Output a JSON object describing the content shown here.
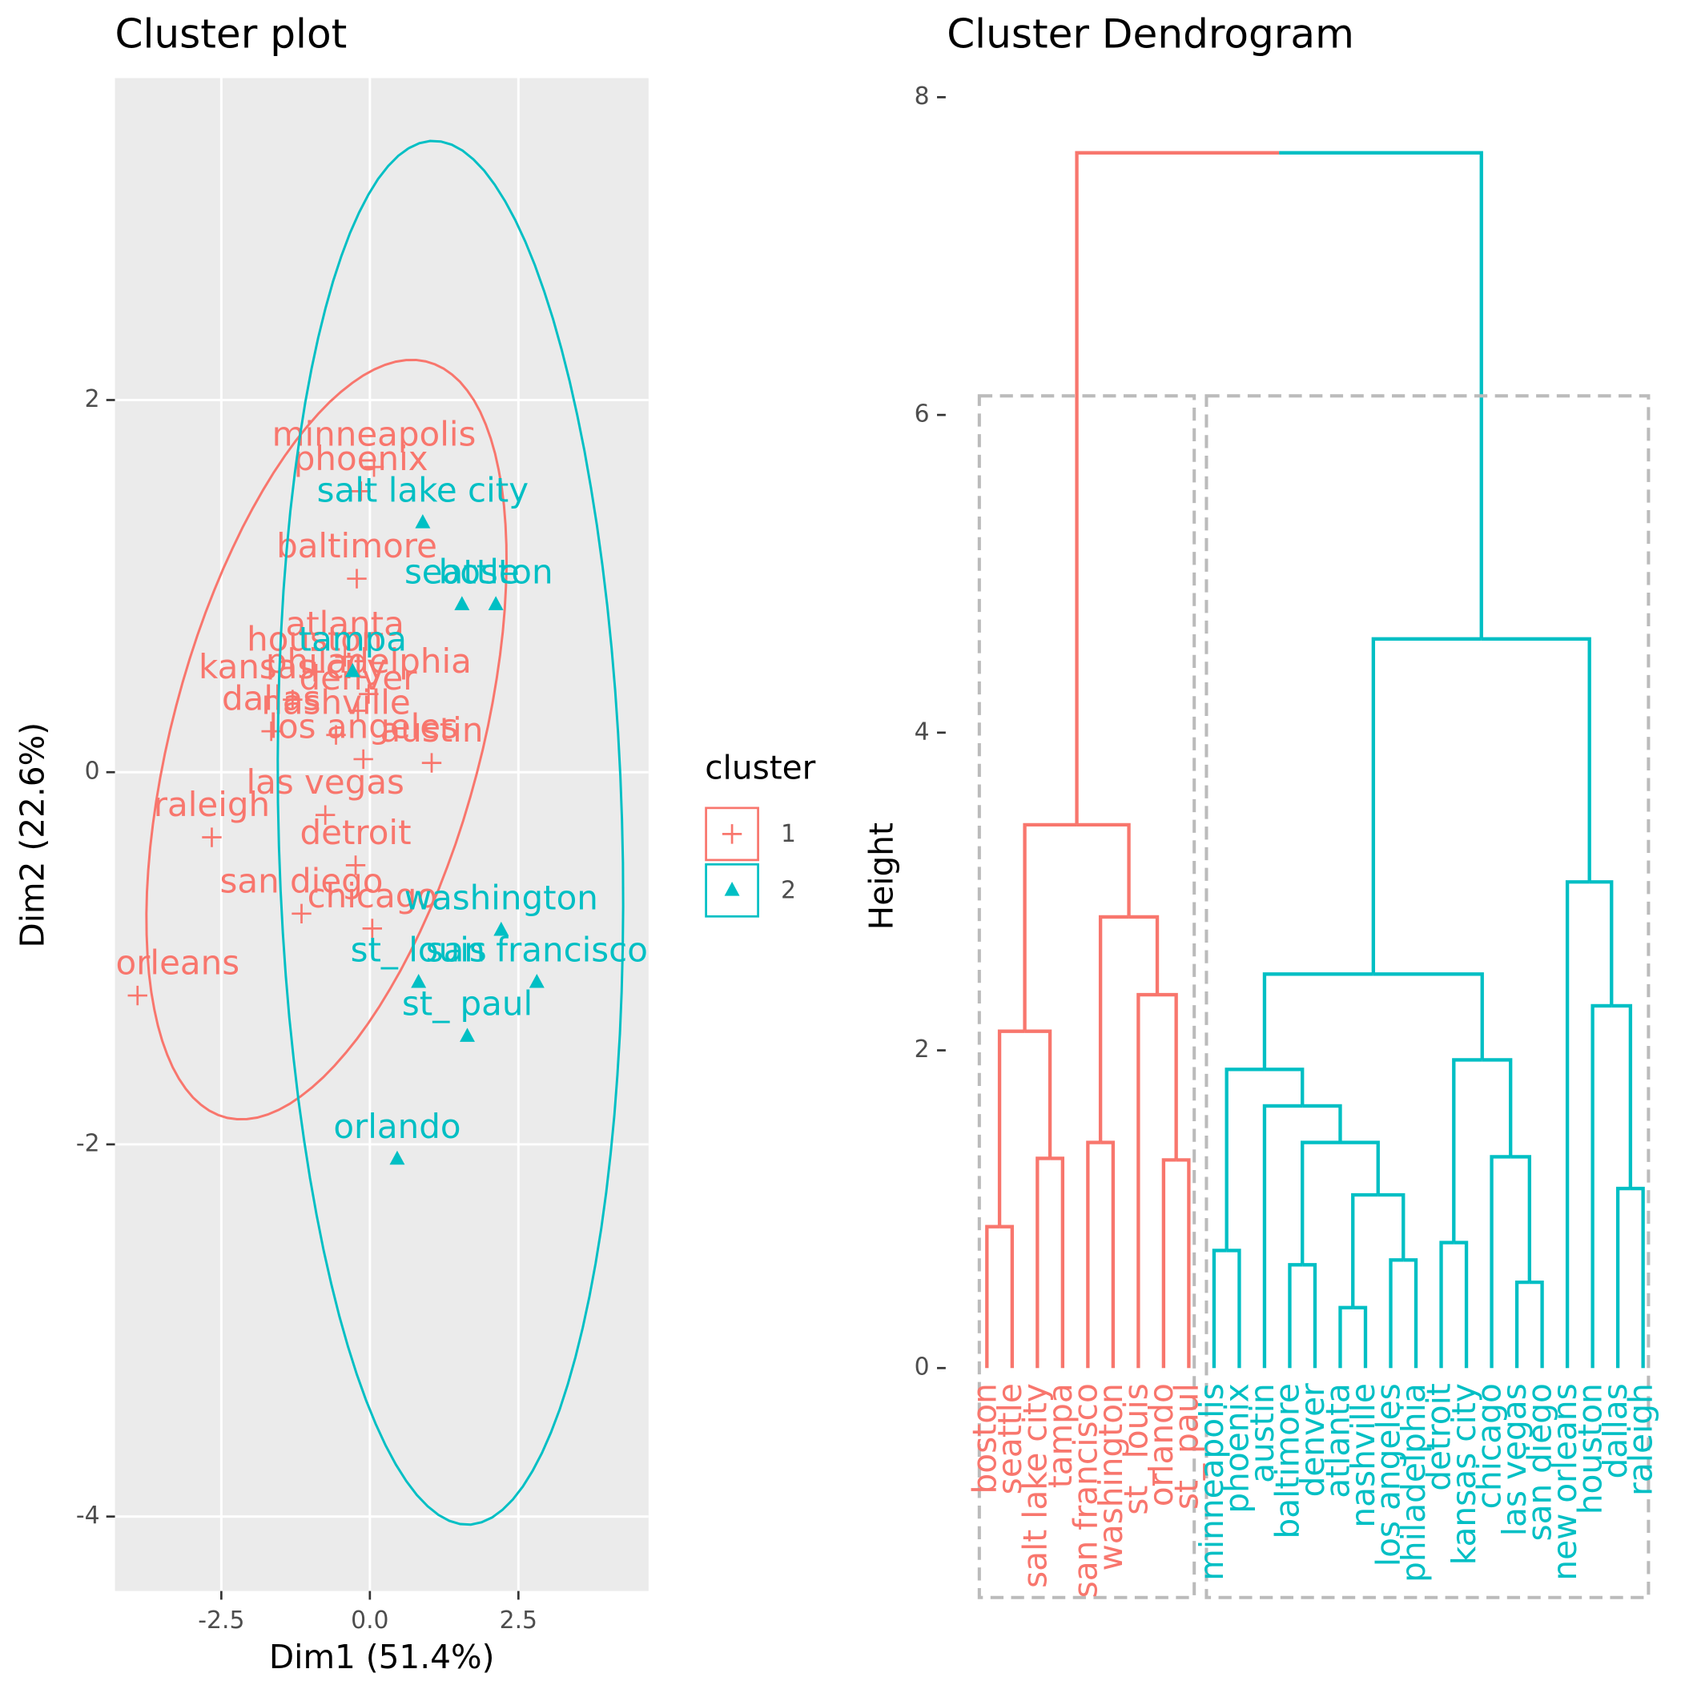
{
  "chart_data": [
    {
      "type": "scatter",
      "title": "Cluster plot",
      "xlabel": "Dim1 (51.4%)",
      "ylabel": "Dim2 (22.6%)",
      "xlim": [
        -4.29,
        4.69
      ],
      "ylim": [
        -4.4,
        3.73
      ],
      "xticks": [
        -2.5,
        {
          "value": 0,
          "label": "0.0"
        },
        2.5
      ],
      "yticks": [
        -4,
        -2,
        0,
        2
      ],
      "grid": true,
      "legend_title": "cluster",
      "legend": "right",
      "series": [
        {
          "name": "1",
          "color": "#F8766D",
          "marker": "plus",
          "labels": [
            "minneapolis",
            "phoenix",
            "baltimore",
            "atlanta",
            "houston",
            "kansas city",
            "philadelphia",
            "denver",
            "nashville",
            "dallas",
            "los angeles",
            "austin",
            "las vegas",
            "raleigh",
            "detroit",
            "san diego",
            "chicago",
            "new orleans"
          ],
          "x": [
            0.07,
            -0.15,
            -0.22,
            -0.42,
            -0.93,
            -1.3,
            -0.02,
            -0.2,
            -0.57,
            -1.66,
            -0.11,
            1.04,
            -0.75,
            -2.66,
            -0.24,
            -1.15,
            0.04,
            -3.91
          ],
          "y": [
            1.64,
            1.51,
            1.04,
            0.62,
            0.54,
            0.39,
            0.42,
            0.33,
            0.2,
            0.22,
            0.07,
            0.05,
            -0.23,
            -0.35,
            -0.5,
            -0.76,
            -0.84,
            -1.2
          ]
        },
        {
          "name": "2",
          "color": "#00BFC4",
          "marker": "triangle",
          "labels": [
            "salt lake city",
            "seattle",
            "boston",
            "tampa",
            "washington",
            "st_ louis",
            "san francisco",
            "st_ paul",
            "orlando"
          ],
          "x": [
            0.89,
            1.55,
            2.12,
            -0.29,
            2.21,
            0.82,
            2.81,
            1.64,
            0.46
          ],
          "y": [
            1.34,
            0.9,
            0.9,
            0.54,
            -0.85,
            -1.13,
            -1.13,
            -1.42,
            -2.08
          ]
        }
      ]
    },
    {
      "type": "dendrogram",
      "title": "Cluster Dendrogram",
      "ylabel": "Height",
      "ylim": [
        -1.54,
        8.1
      ],
      "yticks": [
        0,
        2,
        4,
        6,
        8
      ],
      "colors": [
        "#F8766D",
        "#00BFC4"
      ],
      "rect_color": "#BBBBBB",
      "labels": [
        "boston",
        "seattle",
        "salt lake city",
        "tampa",
        "san francisco",
        "washington",
        "st_ louis",
        "orlando",
        "st_ paul",
        "minneapolis",
        "phoenix",
        "austin",
        "baltimore",
        "denver",
        "atlanta",
        "nashville",
        "los angeles",
        "philadelphia",
        "detroit",
        "kansas city",
        "chicago",
        "las vegas",
        "san diego",
        "new orleans",
        "houston",
        "dallas",
        "raleigh"
      ],
      "merge": [
        [
          -15,
          -16
        ],
        [
          -22,
          -23
        ],
        [
          -13,
          -14
        ],
        [
          -17,
          -18
        ],
        [
          -10,
          -11
        ],
        [
          -19,
          -20
        ],
        [
          -1,
          -2
        ],
        [
          1,
          4
        ],
        [
          -26,
          -27
        ],
        [
          -8,
          -9
        ],
        [
          -3,
          -4
        ],
        [
          -21,
          2
        ],
        [
          3,
          8
        ],
        [
          -5,
          -6
        ],
        [
          -12,
          13
        ],
        [
          5,
          15
        ],
        [
          6,
          12
        ],
        [
          7,
          11
        ],
        [
          -25,
          9
        ],
        [
          -7,
          10
        ],
        [
          16,
          17
        ],
        [
          14,
          20
        ],
        [
          -24,
          19
        ],
        [
          18,
          22
        ],
        [
          21,
          23
        ],
        [
          24,
          25
        ]
      ],
      "height": [
        0.38,
        0.54,
        0.65,
        0.68,
        0.74,
        0.79,
        0.89,
        1.09,
        1.13,
        1.31,
        1.32,
        1.33,
        1.42,
        1.42,
        1.65,
        1.88,
        1.94,
        2.12,
        2.28,
        2.35,
        2.48,
        2.84,
        3.06,
        3.42,
        4.59,
        7.65
      ]
    }
  ]
}
